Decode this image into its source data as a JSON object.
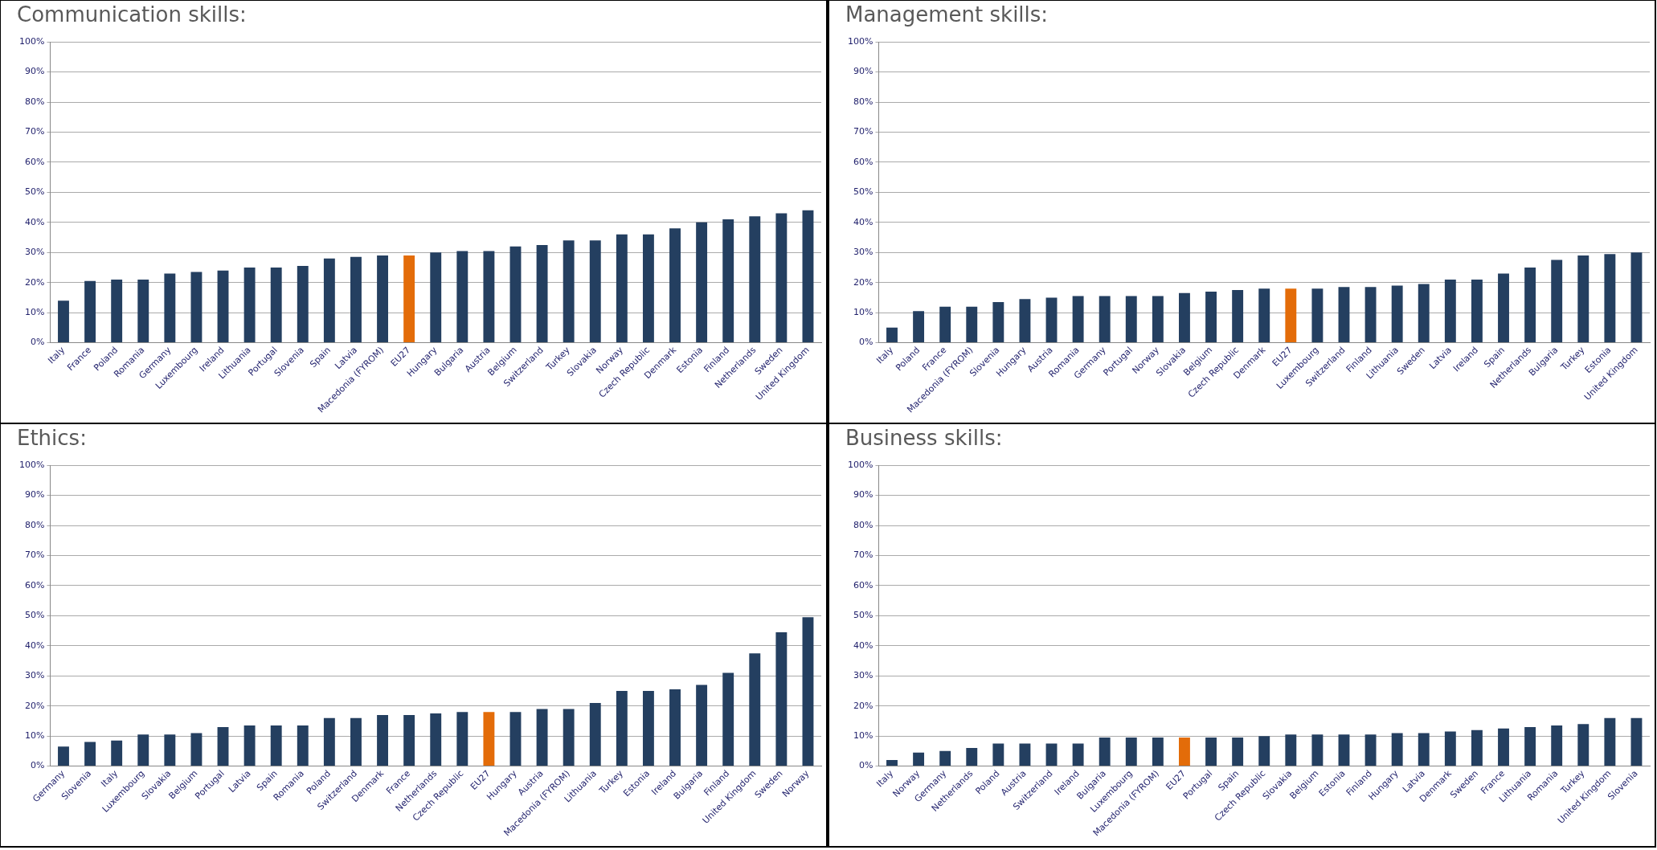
{
  "chart_data": [
    {
      "type": "bar",
      "title": "Communication skills:",
      "categories": [
        "Italy",
        "France",
        "Poland",
        "Romania",
        "Germany",
        "Luxembourg",
        "Ireland",
        "Lithuania",
        "Portugal",
        "Slovenia",
        "Spain",
        "Latvia",
        "Macedonia (FYROM)",
        "EU27",
        "Hungary",
        "Bulgaria",
        "Austria",
        "Belgium",
        "Switzerland",
        "Turkey",
        "Slovakia",
        "Norway",
        "Czech Republic",
        "Denmark",
        "Estonia",
        "Finland",
        "Netherlands",
        "Sweden",
        "United Kingdom"
      ],
      "values": [
        14,
        20.5,
        21,
        21,
        23,
        23.5,
        24,
        25,
        25,
        25.5,
        28,
        28.5,
        29,
        29,
        30,
        30.5,
        30.5,
        32,
        32.5,
        34,
        34,
        36,
        36,
        38,
        40,
        41,
        42,
        43,
        44
      ],
      "colors": [
        "#243f60",
        "#243f60",
        "#243f60",
        "#243f60",
        "#243f60",
        "#243f60",
        "#243f60",
        "#243f60",
        "#243f60",
        "#243f60",
        "#243f60",
        "#243f60",
        "#243f60",
        "#e36c09",
        "#243f60",
        "#243f60",
        "#243f60",
        "#243f60",
        "#243f60",
        "#243f60",
        "#243f60",
        "#243f60",
        "#243f60",
        "#243f60",
        "#243f60",
        "#243f60",
        "#243f60",
        "#243f60",
        "#243f60"
      ],
      "ylim": [
        0,
        100
      ],
      "yticks": [
        {
          "value": 0,
          "label": "0%"
        },
        {
          "value": 10,
          "label": "10%"
        },
        {
          "value": 20,
          "label": "20%"
        },
        {
          "value": 30,
          "label": "30%"
        },
        {
          "value": 40,
          "label": "40%"
        },
        {
          "value": 50,
          "label": "50%"
        },
        {
          "value": 60,
          "label": "60%"
        },
        {
          "value": 70,
          "label": "70%"
        },
        {
          "value": 80,
          "label": "80%"
        },
        {
          "value": 90,
          "label": "90%"
        },
        {
          "value": 100,
          "label": "100%"
        }
      ],
      "grid": "y",
      "legend": false
    },
    {
      "type": "bar",
      "title": "Management skills:",
      "categories": [
        "Italy",
        "Poland",
        "France",
        "Macedonia (FYROM)",
        "Slovenia",
        "Hungary",
        "Austria",
        "Romania",
        "Germany",
        "Portugal",
        "Norway",
        "Slovakia",
        "Belgium",
        "Czech Republic",
        "Denmark",
        "EU27",
        "Luxembourg",
        "Switzerland",
        "Finland",
        "Lithuania",
        "Sweden",
        "Latvia",
        "Ireland",
        "Spain",
        "Netherlands",
        "Bulgaria",
        "Turkey",
        "Estonia",
        "United Kingdom"
      ],
      "values": [
        5,
        10.5,
        12,
        12,
        13.5,
        14.5,
        15,
        15.5,
        15.5,
        15.5,
        15.5,
        16.5,
        17,
        17.5,
        18,
        18,
        18,
        18.5,
        18.5,
        19,
        19.5,
        21,
        21,
        23,
        25,
        27.5,
        29,
        29.5,
        30
      ],
      "colors": [
        "#243f60",
        "#243f60",
        "#243f60",
        "#243f60",
        "#243f60",
        "#243f60",
        "#243f60",
        "#243f60",
        "#243f60",
        "#243f60",
        "#243f60",
        "#243f60",
        "#243f60",
        "#243f60",
        "#243f60",
        "#e36c09",
        "#243f60",
        "#243f60",
        "#243f60",
        "#243f60",
        "#243f60",
        "#243f60",
        "#243f60",
        "#243f60",
        "#243f60",
        "#243f60",
        "#243f60",
        "#243f60",
        "#243f60"
      ],
      "ylim": [
        0,
        100
      ],
      "yticks": [
        {
          "value": 0,
          "label": "0%"
        },
        {
          "value": 10,
          "label": "10%"
        },
        {
          "value": 20,
          "label": "20%"
        },
        {
          "value": 30,
          "label": "30%"
        },
        {
          "value": 40,
          "label": "40%"
        },
        {
          "value": 50,
          "label": "50%"
        },
        {
          "value": 60,
          "label": "60%"
        },
        {
          "value": 70,
          "label": "70%"
        },
        {
          "value": 80,
          "label": "80%"
        },
        {
          "value": 90,
          "label": "90%"
        },
        {
          "value": 100,
          "label": "100%"
        }
      ],
      "grid": "y",
      "legend": false
    },
    {
      "type": "bar",
      "title": "Ethics:",
      "categories": [
        "Germany",
        "Slovenia",
        "Italy",
        "Luxembourg",
        "Slovakia",
        "Belgium",
        "Portugal",
        "Latvia",
        "Spain",
        "Romania",
        "Poland",
        "Switzerland",
        "Denmark",
        "France",
        "Netherlands",
        "Czech Republic",
        "EU27",
        "Hungary",
        "Austria",
        "Macedonia (FYROM)",
        "Lithuania",
        "Turkey",
        "Estonia",
        "Ireland",
        "Bulgaria",
        "Finland",
        "United Kingdom",
        "Sweden",
        "Norway"
      ],
      "values": [
        6.5,
        8,
        8.5,
        10.5,
        10.5,
        11,
        13,
        13.5,
        13.5,
        13.5,
        16,
        16,
        17,
        17,
        17.5,
        18,
        18,
        18,
        19,
        19,
        21,
        25,
        25,
        25.5,
        27,
        31,
        37.5,
        44.5,
        49.5
      ],
      "colors": [
        "#243f60",
        "#243f60",
        "#243f60",
        "#243f60",
        "#243f60",
        "#243f60",
        "#243f60",
        "#243f60",
        "#243f60",
        "#243f60",
        "#243f60",
        "#243f60",
        "#243f60",
        "#243f60",
        "#243f60",
        "#243f60",
        "#e36c09",
        "#243f60",
        "#243f60",
        "#243f60",
        "#243f60",
        "#243f60",
        "#243f60",
        "#243f60",
        "#243f60",
        "#243f60",
        "#243f60",
        "#243f60",
        "#243f60"
      ],
      "ylim": [
        0,
        100
      ],
      "yticks": [
        {
          "value": 0,
          "label": "0%"
        },
        {
          "value": 10,
          "label": "10%"
        },
        {
          "value": 20,
          "label": "20%"
        },
        {
          "value": 30,
          "label": "30%"
        },
        {
          "value": 40,
          "label": "40%"
        },
        {
          "value": 50,
          "label": "50%"
        },
        {
          "value": 60,
          "label": "60%"
        },
        {
          "value": 70,
          "label": "70%"
        },
        {
          "value": 80,
          "label": "80%"
        },
        {
          "value": 90,
          "label": "90%"
        },
        {
          "value": 100,
          "label": "100%"
        }
      ],
      "grid": "y",
      "legend": false
    },
    {
      "type": "bar",
      "title": "Business skills:",
      "categories": [
        "Italy",
        "Norway",
        "Germany",
        "Netherlands",
        "Poland",
        "Austria",
        "Switzerland",
        "Ireland",
        "Bulgaria",
        "Luxembourg",
        "Macedonia (FYROM)",
        "EU27",
        "Portugal",
        "Spain",
        "Czech Republic",
        "Slovakia",
        "Belgium",
        "Estonia",
        "Finland",
        "Hungary",
        "Latvia",
        "Denmark",
        "Sweden",
        "France",
        "Lithuania",
        "Romania",
        "Turkey",
        "United Kingdom",
        "Slovenia"
      ],
      "values": [
        2,
        4.5,
        5,
        6,
        7.5,
        7.5,
        7.5,
        7.5,
        9.5,
        9.5,
        9.5,
        9.5,
        9.5,
        9.5,
        10,
        10.5,
        10.5,
        10.5,
        10.5,
        11,
        11,
        11.5,
        12,
        12.5,
        13,
        13.5,
        14,
        16,
        16
      ],
      "colors": [
        "#243f60",
        "#243f60",
        "#243f60",
        "#243f60",
        "#243f60",
        "#243f60",
        "#243f60",
        "#243f60",
        "#243f60",
        "#243f60",
        "#243f60",
        "#e36c09",
        "#243f60",
        "#243f60",
        "#243f60",
        "#243f60",
        "#243f60",
        "#243f60",
        "#243f60",
        "#243f60",
        "#243f60",
        "#243f60",
        "#243f60",
        "#243f60",
        "#243f60",
        "#243f60",
        "#243f60",
        "#243f60",
        "#243f60"
      ],
      "ylim": [
        0,
        100
      ],
      "yticks": [
        {
          "value": 0,
          "label": "0%"
        },
        {
          "value": 10,
          "label": "10%"
        },
        {
          "value": 20,
          "label": "20%"
        },
        {
          "value": 30,
          "label": "30%"
        },
        {
          "value": 40,
          "label": "40%"
        },
        {
          "value": 50,
          "label": "50%"
        },
        {
          "value": 60,
          "label": "60%"
        },
        {
          "value": 70,
          "label": "70%"
        },
        {
          "value": 80,
          "label": "80%"
        },
        {
          "value": 90,
          "label": "90%"
        },
        {
          "value": 100,
          "label": "100%"
        }
      ],
      "grid": "y",
      "legend": false
    }
  ]
}
